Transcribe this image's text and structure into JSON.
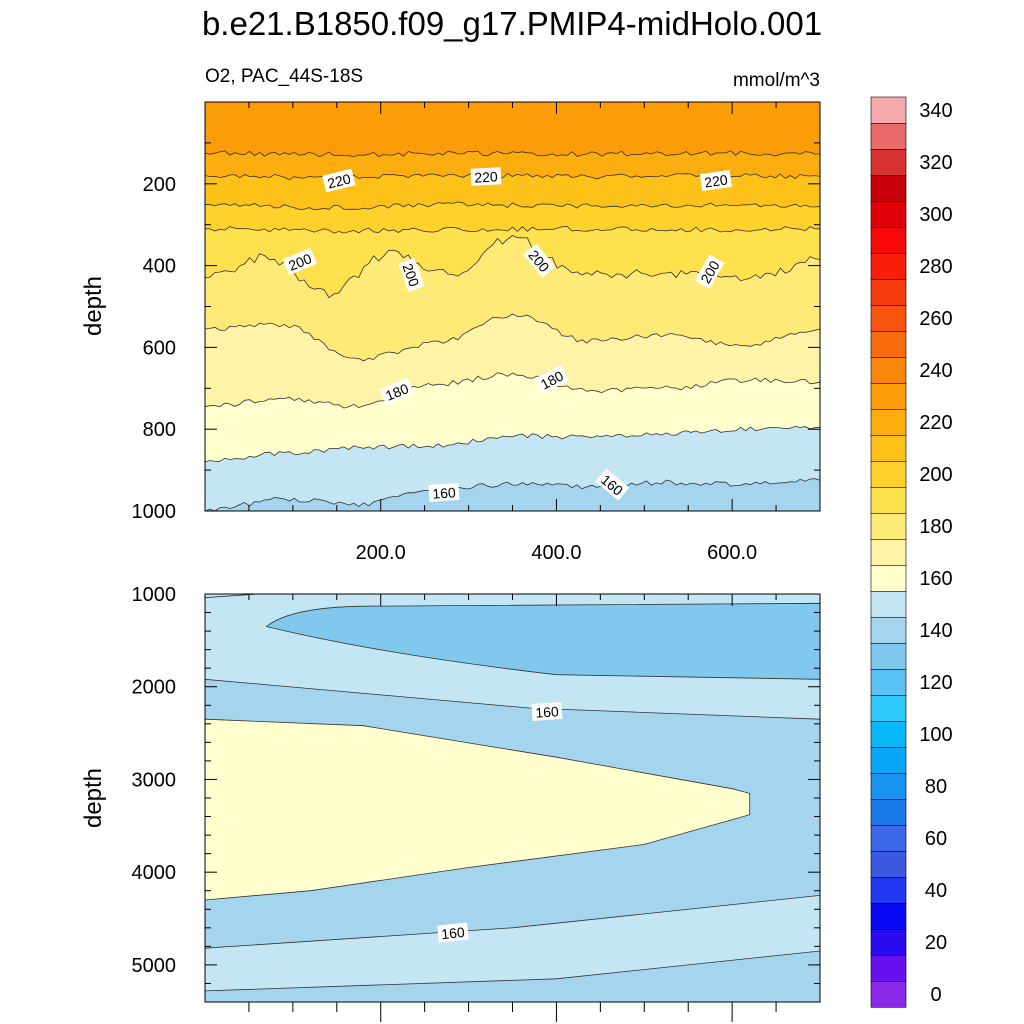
{
  "title": "b.e21.B1850.f09_g17.PMIP4-midHolo.001",
  "colors": {
    "levels": [
      "#8a28e8",
      "#6a10f0",
      "#2a0af0",
      "#0a0af8",
      "#2038f0",
      "#3a58e0",
      "#3a68e8",
      "#1c7ae8",
      "#1a92f0",
      "#0aa6f8",
      "#0ab8f8",
      "#2cc8f8",
      "#5ac2f2",
      "#80c8ee",
      "#a4d4ee",
      "#c4e6f4",
      "#fffecc",
      "#fff3a8",
      "#ffea78",
      "#ffe14e",
      "#fed22a",
      "#fdc21a",
      "#fcae10",
      "#fb9c08",
      "#f8860c",
      "#f86c10",
      "#f85410",
      "#f83c10",
      "#f81e08",
      "#f80808",
      "#e0000a",
      "#c8000a",
      "#d83232",
      "#e86a6a",
      "#f4aaaa"
    ]
  },
  "chart_data": [
    {
      "type": "contour",
      "left_label": "O2, PAC_44S-18S",
      "right_label": "mmol/m^3",
      "ylabel": "depth",
      "ylim": [
        1000,
        0
      ],
      "xlim": [
        0,
        700
      ],
      "yticks": [
        "200",
        "400",
        "600",
        "800",
        "1000"
      ],
      "xticks": [
        "200.0",
        "400.0",
        "600.0"
      ],
      "contour_labels": [
        "220",
        "220",
        "220",
        "200",
        "200",
        "200",
        "200",
        "180",
        "180",
        "160",
        "160"
      ],
      "contour_levels": [
        {
          "value": 225,
          "depth": [
            125,
            128,
            126,
            127,
            125,
            127
          ]
        },
        {
          "value": 220,
          "depth": [
            180,
            185,
            178,
            183,
            180,
            182
          ]
        },
        {
          "value": 215,
          "depth": [
            250,
            258,
            250,
            255,
            252,
            255
          ]
        },
        {
          "value": 210,
          "depth": [
            310,
            315,
            312,
            310,
            312,
            310
          ]
        },
        {
          "value": 200,
          "depth": [
            430,
            380,
            470,
            370,
            420,
            330,
            415,
            420,
            420,
            430,
            385
          ]
        },
        {
          "value": 190,
          "depth": [
            555,
            545,
            630,
            590,
            520,
            585,
            570,
            595,
            555
          ]
        },
        {
          "value": 180,
          "depth": [
            745,
            725,
            745,
            690,
            665,
            705,
            700,
            680,
            685
          ]
        },
        {
          "value": 170,
          "depth": [
            880,
            860,
            845,
            840,
            815,
            820,
            810,
            800,
            795
          ]
        },
        {
          "value": 160,
          "depth": [
            1000,
            970,
            985,
            945,
            935,
            940,
            930,
            935,
            925
          ]
        }
      ]
    },
    {
      "type": "contour",
      "ylabel": "depth",
      "ylim": [
        5400,
        1000
      ],
      "xlim": [
        0,
        700
      ],
      "yticks": [
        "1000",
        "2000",
        "3000",
        "4000",
        "5000"
      ],
      "contour_labels": [
        "160",
        "160"
      ],
      "regions": [
        {
          "value": 165,
          "description": "mid-depth core, about 2350 to 4300 m, tapering eastward to about 620"
        },
        {
          "value": 155,
          "description": "low-oxygen tongue, about 1100 to 1900 m, from about 70 eastward"
        },
        {
          "value": 155,
          "description": "deep water below about 4800 m deepening westward"
        }
      ]
    },
    {
      "type": "colorbar",
      "tick_labels": [
        "0",
        "20",
        "40",
        "60",
        "80",
        "100",
        "120",
        "140",
        "160",
        "180",
        "200",
        "220",
        "240",
        "260",
        "280",
        "300",
        "320",
        "340"
      ]
    }
  ]
}
